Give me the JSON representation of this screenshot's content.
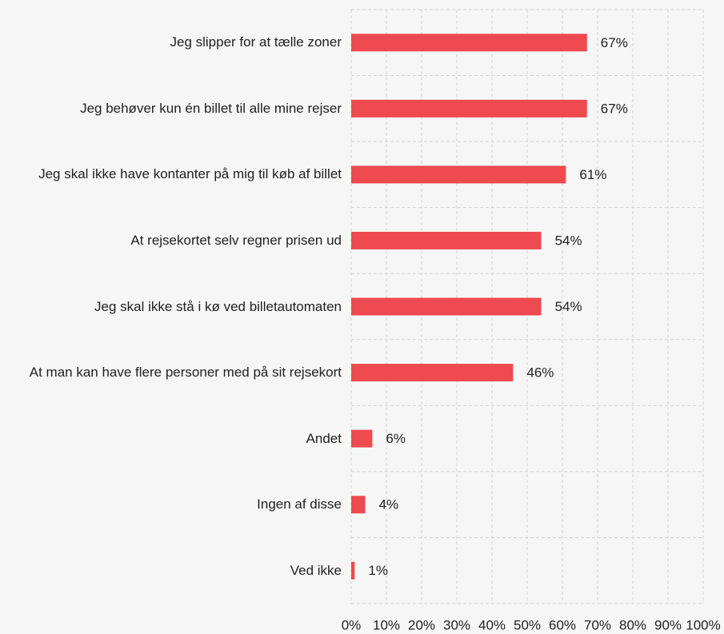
{
  "chart_data": {
    "type": "hbar",
    "categories": [
      "Jeg slipper for at tælle zoner",
      "Jeg behøver kun én billet til alle mine rejser",
      "Jeg skal ikke have kontanter på mig til køb af billet",
      "At rejsekortet selv regner prisen ud",
      "Jeg skal ikke stå i kø ved billetautomaten",
      "At man kan have flere personer med på sit rejsekort",
      "Andet",
      "Ingen af disse",
      "Ved ikke"
    ],
    "values": [
      67,
      67,
      61,
      54,
      54,
      46,
      6,
      4,
      1
    ],
    "value_labels": [
      "67%",
      "67%",
      "61%",
      "54%",
      "54%",
      "46%",
      "6%",
      "4%",
      "1%"
    ],
    "color": "#ef4a50",
    "xlim": [
      0,
      100
    ],
    "xticks": [
      {
        "value": 0,
        "label": "0%"
      },
      {
        "value": 10,
        "label": "10%"
      },
      {
        "value": 20,
        "label": "20%"
      },
      {
        "value": 30,
        "label": "30%"
      },
      {
        "value": 40,
        "label": "40%"
      },
      {
        "value": 50,
        "label": "50%"
      },
      {
        "value": 60,
        "label": "60%"
      },
      {
        "value": 70,
        "label": "70%"
      },
      {
        "value": 80,
        "label": "80%"
      },
      {
        "value": 90,
        "label": "90%"
      },
      {
        "value": 100,
        "label": "100%"
      }
    ],
    "grid": true
  }
}
